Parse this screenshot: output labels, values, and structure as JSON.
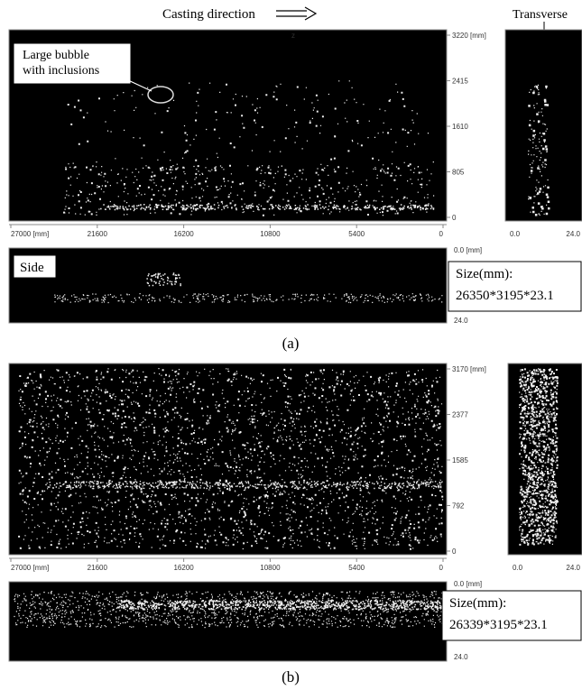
{
  "header": {
    "casting_direction": "Casting direction",
    "transverse": "Transverse"
  },
  "panels": [
    {
      "caption": "(a)",
      "annotation": [
        "Large bubble",
        "with inclusions"
      ],
      "marker": "z",
      "x_labels": [
        "27000 [mm]",
        "21600",
        "16200",
        "10800",
        "5400",
        "0"
      ],
      "y_labels": [
        "3220 [mm]",
        "2415",
        "1610",
        "805",
        "0"
      ],
      "transverse_labels": [
        "0.0",
        "24.0"
      ],
      "side_label": "Side",
      "side_labels": [
        "0.0 [mm]",
        "24.0"
      ],
      "size_title": "Size(mm):",
      "size_value": "26350*3195*23.1"
    },
    {
      "caption": "(b)",
      "x_labels": [
        "27000 [mm]",
        "21600",
        "16200",
        "10800",
        "5400",
        "0"
      ],
      "y_labels": [
        "3170 [mm]",
        "2377",
        "1585",
        "792",
        "0"
      ],
      "transverse_labels": [
        "0.0",
        "24.0"
      ],
      "side_labels": [
        "0.0 [mm]",
        "24.0"
      ],
      "size_title": "Size(mm):",
      "size_value": "26339*3195*23.1"
    }
  ]
}
